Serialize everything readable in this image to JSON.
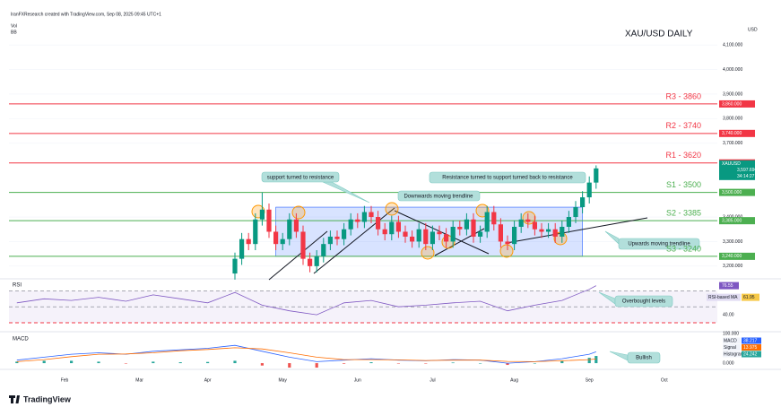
{
  "header": {
    "credit": "IranFXResearch created with TradingView.com, Sep 08, 2025 09:45 UTC+1",
    "indicators": [
      "Vol",
      "BB"
    ],
    "logo": "TradingView"
  },
  "chart_data": [
    {
      "type": "candlestick",
      "title": "XAU/USD DAILY",
      "currency": "USD",
      "symbol": "XAUUSD",
      "countdown": "34:14:27",
      "categories": [
        null,
        null,
        null,
        null,
        null,
        null,
        null,
        "Feb",
        null,
        null,
        null,
        null,
        null,
        null,
        null,
        null,
        null,
        null,
        "Mar",
        null,
        null,
        null,
        null,
        null,
        null,
        null,
        null,
        null,
        "Apr",
        null,
        null,
        null,
        null,
        null,
        null,
        null,
        null,
        null,
        null,
        "May",
        null,
        null,
        null,
        null,
        null,
        null,
        null,
        null,
        null,
        null,
        "Jun",
        null,
        null,
        null,
        null,
        null,
        null,
        null,
        null,
        null,
        null,
        "Jul",
        null,
        null,
        null,
        null,
        null,
        null,
        null,
        null,
        null,
        null,
        null,
        "Aug",
        null,
        null,
        null,
        null,
        null,
        null,
        null,
        null,
        null,
        null,
        "Sep",
        null,
        null,
        null,
        null,
        null,
        null,
        null,
        null,
        null,
        null,
        "Oct"
      ],
      "open": [
        null,
        null,
        null,
        null,
        null,
        null,
        null,
        null,
        null,
        null,
        null,
        null,
        null,
        null,
        null,
        null,
        null,
        null,
        null,
        null,
        null,
        null,
        null,
        null,
        null,
        null,
        null,
        null,
        null,
        null,
        null,
        null,
        3170,
        3230,
        3310,
        3290,
        3390,
        3430,
        3340,
        3290,
        3310,
        3390,
        3340,
        3230,
        3200,
        3240,
        3290,
        3320,
        3310,
        3350,
        3390,
        3380,
        3420,
        3400,
        3350,
        3330,
        3380,
        3340,
        3320,
        3300,
        3350,
        3290,
        3340,
        3330,
        3300,
        3360,
        3350,
        3390,
        3320,
        3340,
        3420,
        3370,
        3300,
        3290,
        3360,
        3390,
        3380,
        3350,
        3340,
        3350,
        3320,
        3360,
        3400,
        3440,
        3480,
        3540,
        null,
        null,
        null,
        null,
        null,
        null,
        null,
        null,
        null,
        null
      ],
      "high": [
        null,
        null,
        null,
        null,
        null,
        null,
        null,
        null,
        null,
        null,
        null,
        null,
        null,
        null,
        null,
        null,
        null,
        null,
        null,
        null,
        null,
        null,
        null,
        null,
        null,
        null,
        null,
        null,
        null,
        null,
        null,
        null,
        3255,
        3335,
        3335,
        3415,
        3500,
        3455,
        3365,
        3335,
        3415,
        3415,
        3365,
        3255,
        3265,
        3315,
        3345,
        3345,
        3375,
        3415,
        3415,
        3445,
        3445,
        3425,
        3375,
        3405,
        3405,
        3365,
        3345,
        3375,
        3375,
        3365,
        3365,
        3355,
        3385,
        3385,
        3415,
        3415,
        3365,
        3445,
        3445,
        3395,
        3325,
        3385,
        3415,
        3415,
        3405,
        3375,
        3375,
        3375,
        3385,
        3425,
        3465,
        3505,
        3565,
        3610,
        null,
        null,
        null,
        null,
        null,
        null,
        null,
        null,
        null,
        null
      ],
      "low": [
        null,
        null,
        null,
        null,
        null,
        null,
        null,
        null,
        null,
        null,
        null,
        null,
        null,
        null,
        null,
        null,
        null,
        null,
        null,
        null,
        null,
        null,
        null,
        null,
        null,
        null,
        null,
        null,
        null,
        null,
        null,
        null,
        3145,
        3205,
        3265,
        3265,
        3365,
        3315,
        3265,
        3265,
        3285,
        3315,
        3205,
        3175,
        3175,
        3215,
        3265,
        3285,
        3285,
        3325,
        3355,
        3355,
        3375,
        3325,
        3305,
        3305,
        3315,
        3295,
        3275,
        3275,
        3265,
        3265,
        3305,
        3275,
        3275,
        3325,
        3325,
        3295,
        3295,
        3315,
        3345,
        3275,
        3265,
        3265,
        3335,
        3355,
        3325,
        3315,
        3315,
        3295,
        3295,
        3335,
        3375,
        3415,
        3455,
        3515,
        null,
        null,
        null,
        null,
        null,
        null,
        null,
        null,
        null,
        null
      ],
      "close": [
        null,
        null,
        null,
        null,
        null,
        null,
        null,
        null,
        null,
        null,
        null,
        null,
        null,
        null,
        null,
        null,
        null,
        null,
        null,
        null,
        null,
        null,
        null,
        null,
        null,
        null,
        null,
        null,
        null,
        null,
        null,
        null,
        3230,
        3310,
        3290,
        3390,
        3430,
        3340,
        3290,
        3310,
        3390,
        3340,
        3230,
        3200,
        3240,
        3290,
        3320,
        3310,
        3350,
        3390,
        3380,
        3420,
        3400,
        3350,
        3330,
        3380,
        3340,
        3320,
        3300,
        3350,
        3290,
        3340,
        3330,
        3300,
        3360,
        3350,
        3390,
        3320,
        3340,
        3420,
        3370,
        3300,
        3290,
        3360,
        3390,
        3380,
        3350,
        3340,
        3350,
        3320,
        3360,
        3400,
        3440,
        3480,
        3540,
        3597.69,
        null,
        null,
        null,
        null,
        null,
        null,
        null,
        null,
        null,
        null
      ],
      "up_color": "#089981",
      "down_color": "#f23645",
      "ylim": [
        3152,
        4210
      ],
      "yticks": [
        {
          "value": 4100,
          "label": "4,100.000"
        },
        {
          "value": 4000,
          "label": "4,000.000"
        },
        {
          "value": 3900,
          "label": "3,900.000"
        },
        {
          "value": 3800,
          "label": "3,800.000"
        },
        {
          "value": 3700,
          "label": "3,700.000"
        },
        {
          "value": 3400,
          "label": "3,400.000"
        },
        {
          "value": 3300,
          "label": "3,300.000"
        },
        {
          "value": 3200,
          "label": "3,200.000"
        }
      ],
      "levels": [
        {
          "name": "R3 - 3860",
          "value": 3860,
          "label": "3,860.000",
          "color": "#f23645"
        },
        {
          "name": "R2 - 3740",
          "value": 3740,
          "label": "3,740.000",
          "color": "#f23645"
        },
        {
          "name": "R1 - 3620",
          "value": 3620,
          "label": "3,620.000",
          "color": "#f23645"
        },
        {
          "name": "S1 - 3500",
          "value": 3500,
          "label": "3,500.000",
          "color": "#4caf50"
        },
        {
          "name": "S2 - 3385",
          "value": 3385,
          "label": "3,385.000",
          "color": "#4caf50"
        },
        {
          "name": "S3 - 3240",
          "value": 3240,
          "label": "3,240.000",
          "color": "#4caf50"
        }
      ],
      "range_box": [
        3240,
        3440
      ],
      "last_price": {
        "value": 3597.69,
        "label": "3,597.690"
      },
      "annotations": [
        "support turned to resistance",
        "Downwards moving trendline",
        "Resistance turned to support turned back to resistance",
        "Upwards moving trendline"
      ]
    },
    {
      "type": "line",
      "title": "RSI",
      "x": [
        0,
        4,
        8,
        12,
        16,
        20,
        24,
        28,
        32,
        36,
        40,
        44,
        48,
        52,
        56,
        60,
        64,
        68,
        72,
        76,
        80,
        84,
        85
      ],
      "values": [
        55,
        60,
        58,
        62,
        57,
        65,
        60,
        55,
        68,
        52,
        45,
        40,
        55,
        58,
        50,
        52,
        55,
        57,
        45,
        52,
        58,
        72,
        76.55
      ],
      "color": "#7e57c2",
      "ylim": [
        21,
        84
      ],
      "yticks": [
        {
          "value": 40,
          "label": "40.00"
        }
      ],
      "levels": [
        70,
        50,
        30
      ],
      "ma": {
        "name": "RSI-based MA",
        "value": 61.95,
        "color": "#f7c948"
      },
      "annotation": "Overbought levels"
    },
    {
      "type": "macd",
      "title": "MACD",
      "x": [
        0,
        4,
        8,
        12,
        16,
        20,
        24,
        28,
        32,
        36,
        40,
        44,
        48,
        52,
        56,
        60,
        64,
        68,
        72,
        76,
        80,
        84,
        85
      ],
      "series": [
        {
          "name": "MACD",
          "color": "#2962ff",
          "values": [
            10,
            20,
            30,
            35,
            30,
            40,
            45,
            50,
            60,
            40,
            20,
            5,
            10,
            15,
            10,
            8,
            12,
            10,
            0,
            5,
            15,
            30,
            38.217
          ]
        },
        {
          "name": "Signal",
          "color": "#ff6d00",
          "values": [
            5,
            12,
            22,
            30,
            31,
            35,
            42,
            46,
            52,
            48,
            35,
            20,
            12,
            12,
            11,
            9,
            10,
            10,
            6,
            5,
            8,
            12,
            13.975
          ]
        },
        {
          "name": "Histogram",
          "color": "#26a69a",
          "values": [
            5,
            8,
            8,
            5,
            -1,
            5,
            3,
            4,
            8,
            -8,
            -15,
            -15,
            -2,
            3,
            -1,
            -1,
            2,
            0,
            -6,
            0,
            7,
            18,
            24.242
          ]
        }
      ],
      "ylim": [
        -21,
        106
      ],
      "yticks": [
        {
          "value": 100,
          "label": "100.000"
        },
        {
          "value": 0,
          "label": "0.000"
        }
      ],
      "annotation": "Bullish"
    }
  ]
}
